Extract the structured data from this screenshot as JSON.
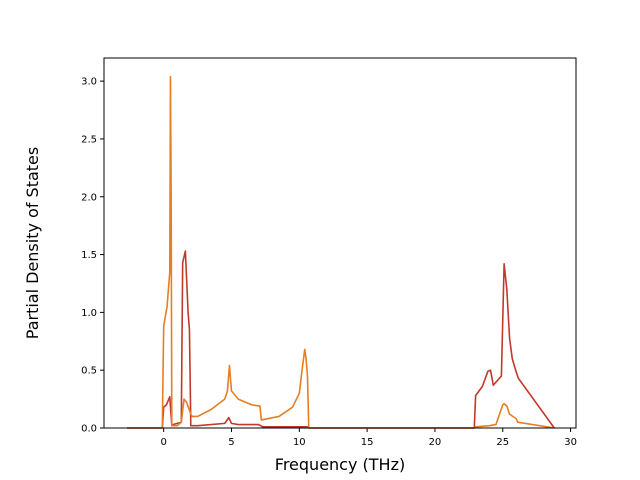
{
  "chart_data": {
    "type": "line",
    "title": "",
    "xlabel": "Frequency (THz)",
    "ylabel": "Partial Density of States",
    "xlim": [
      -4.4,
      30.4
    ],
    "ylim": [
      0,
      3.2
    ],
    "xticks": [
      0,
      5,
      10,
      15,
      20,
      25,
      30
    ],
    "yticks": [
      0.0,
      0.5,
      1.0,
      1.5,
      2.0,
      2.5,
      3.0
    ],
    "xtick_labels": [
      "0",
      "5",
      "10",
      "15",
      "20",
      "25",
      "30"
    ],
    "ytick_labels": [
      "0.0",
      "0.5",
      "1.0",
      "1.5",
      "2.0",
      "2.5",
      "3.0"
    ],
    "grid": false,
    "series": [
      {
        "color": "#c0392b",
        "x": [
          -2.7,
          -0.1,
          0.0,
          0.2,
          0.45,
          0.6,
          0.7,
          1.0,
          1.3,
          1.4,
          1.6,
          1.8,
          1.9,
          2.0,
          2.5,
          4.5,
          4.8,
          5.0,
          5.5,
          7.0,
          7.3,
          10.0,
          10.6,
          10.7,
          22.9,
          23.0,
          23.5,
          23.9,
          24.1,
          24.3,
          24.9,
          25.1,
          25.3,
          25.5,
          25.7,
          26.0,
          26.15,
          28.8
        ],
        "y": [
          0.0,
          0.0,
          0.18,
          0.2,
          0.27,
          0.02,
          0.03,
          0.04,
          0.05,
          1.43,
          1.53,
          1.0,
          0.85,
          0.02,
          0.02,
          0.04,
          0.09,
          0.04,
          0.03,
          0.03,
          0.01,
          0.01,
          0.01,
          0.0,
          0.0,
          0.28,
          0.36,
          0.49,
          0.5,
          0.37,
          0.45,
          1.42,
          1.2,
          0.78,
          0.6,
          0.48,
          0.43,
          0.0
        ]
      },
      {
        "color": "#e67e22",
        "x": [
          -2.7,
          -0.1,
          0.0,
          0.1,
          0.25,
          0.45,
          0.5,
          0.55,
          0.6,
          0.7,
          1.0,
          1.3,
          1.5,
          1.7,
          2.0,
          2.1,
          2.5,
          3.5,
          4.5,
          4.7,
          4.85,
          5.0,
          5.5,
          6.5,
          7.1,
          7.2,
          8.5,
          9.5,
          10.0,
          10.2,
          10.4,
          10.5,
          10.6,
          10.7,
          22.9,
          23.0,
          24.0,
          24.5,
          25.0,
          25.1,
          25.3,
          25.5,
          26.0,
          26.1,
          28.8
        ],
        "y": [
          0.0,
          0.0,
          0.88,
          0.95,
          1.05,
          1.35,
          3.04,
          2.0,
          0.02,
          0.02,
          0.02,
          0.05,
          0.25,
          0.22,
          0.12,
          0.1,
          0.1,
          0.16,
          0.25,
          0.32,
          0.54,
          0.32,
          0.25,
          0.2,
          0.19,
          0.07,
          0.1,
          0.18,
          0.3,
          0.5,
          0.68,
          0.6,
          0.45,
          0.0,
          0.0,
          0.01,
          0.02,
          0.03,
          0.2,
          0.21,
          0.19,
          0.12,
          0.08,
          0.05,
          0.0
        ]
      }
    ]
  }
}
